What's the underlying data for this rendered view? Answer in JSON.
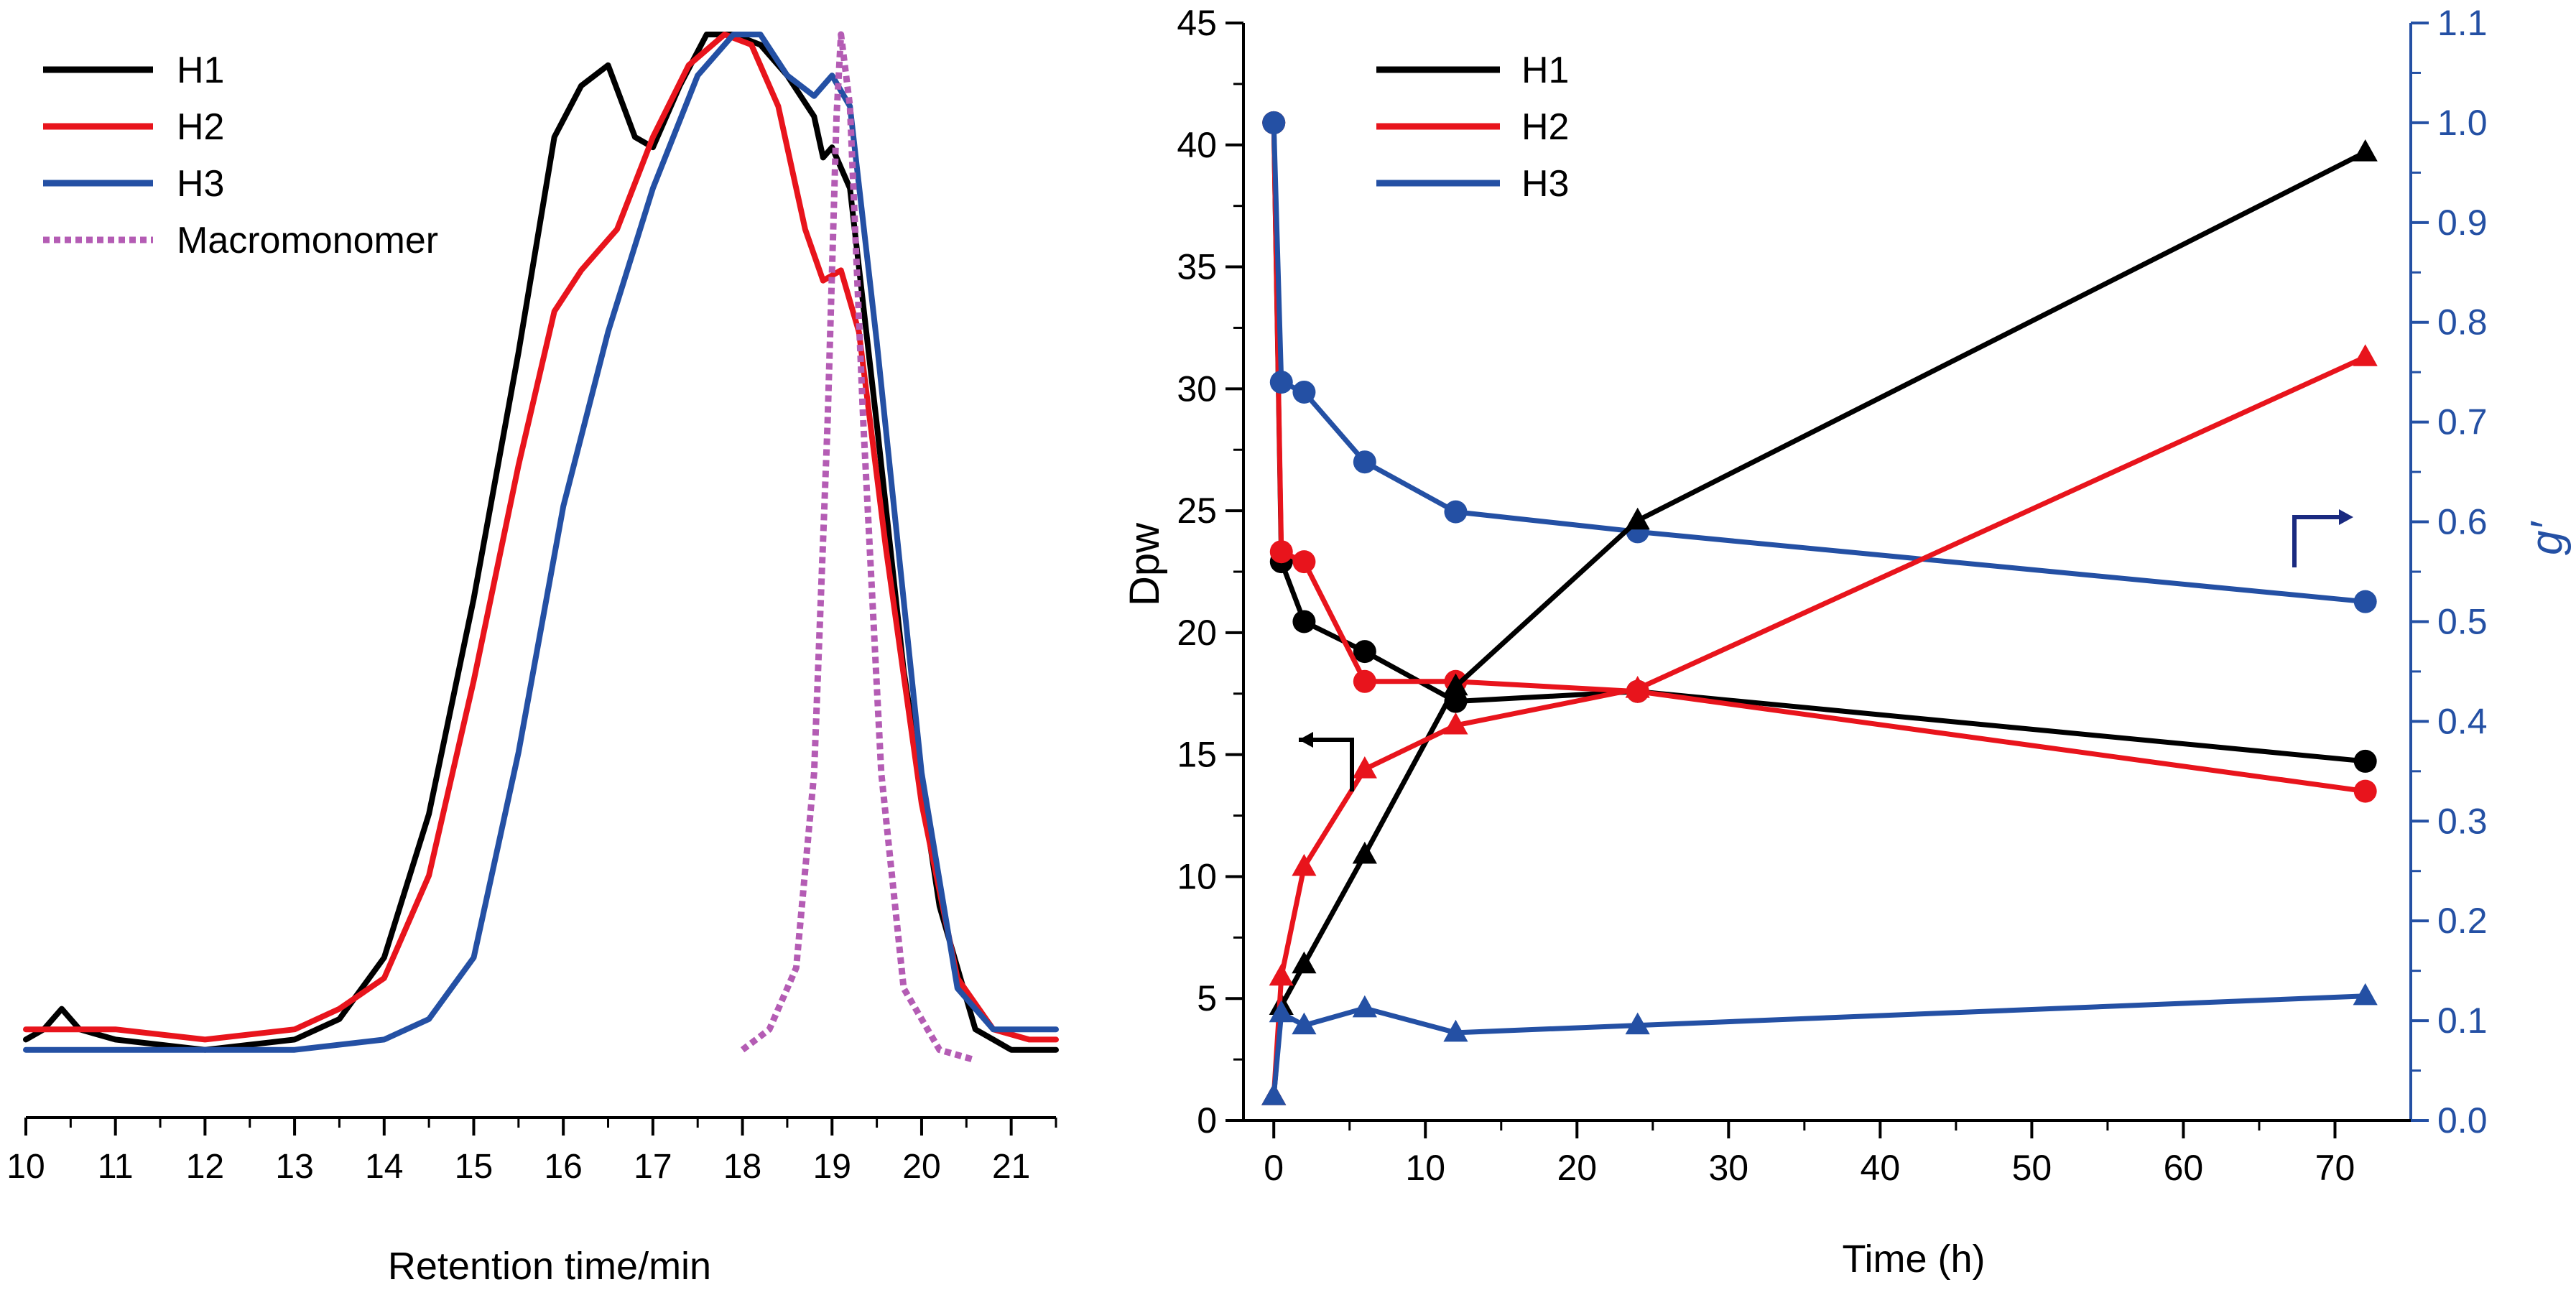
{
  "colors": {
    "H1": "#000000",
    "H2": "#e8141c",
    "H3": "#2450a4",
    "Macromonomer": "#b45cb4",
    "right_axis": "#2450a4",
    "arrow_right": "#1a2a80"
  },
  "chart_data": [
    {
      "type": "line",
      "xlabel": "Retention time/min",
      "ylabel": "",
      "xlim": [
        10,
        21.5
      ],
      "x_ticks": [
        "10",
        "11",
        "12",
        "13",
        "14",
        "15",
        "16",
        "17",
        "18",
        "19",
        "20",
        "21"
      ],
      "y_scale": "normalized detector signal, no y axis printed",
      "legend_position": "top-left",
      "grid": false,
      "series": [
        {
          "name": "H1",
          "style": "solid",
          "points": [
            [
              10,
              0.02
            ],
            [
              10.2,
              0.03
            ],
            [
              10.4,
              0.05
            ],
            [
              10.6,
              0.03
            ],
            [
              11,
              0.02
            ],
            [
              12,
              0.01
            ],
            [
              13,
              0.02
            ],
            [
              13.5,
              0.04
            ],
            [
              14,
              0.1
            ],
            [
              14.5,
              0.24
            ],
            [
              15,
              0.45
            ],
            [
              15.5,
              0.69
            ],
            [
              15.9,
              0.9
            ],
            [
              16.2,
              0.95
            ],
            [
              16.5,
              0.97
            ],
            [
              16.8,
              0.9
            ],
            [
              17.0,
              0.89
            ],
            [
              17.3,
              0.95
            ],
            [
              17.6,
              1.0
            ],
            [
              17.9,
              1.0
            ],
            [
              18.2,
              0.99
            ],
            [
              18.5,
              0.96
            ],
            [
              18.8,
              0.92
            ],
            [
              18.9,
              0.88
            ],
            [
              19.0,
              0.89
            ],
            [
              19.2,
              0.85
            ],
            [
              19.5,
              0.62
            ],
            [
              19.8,
              0.38
            ],
            [
              20.2,
              0.15
            ],
            [
              20.6,
              0.03
            ],
            [
              21.0,
              0.01
            ],
            [
              21.5,
              0.01
            ]
          ]
        },
        {
          "name": "H2",
          "style": "solid",
          "points": [
            [
              10,
              0.03
            ],
            [
              10.4,
              0.03
            ],
            [
              11,
              0.03
            ],
            [
              12,
              0.02
            ],
            [
              13,
              0.03
            ],
            [
              13.5,
              0.05
            ],
            [
              14,
              0.08
            ],
            [
              14.5,
              0.18
            ],
            [
              15,
              0.37
            ],
            [
              15.5,
              0.58
            ],
            [
              15.9,
              0.73
            ],
            [
              16.2,
              0.77
            ],
            [
              16.6,
              0.81
            ],
            [
              17,
              0.9
            ],
            [
              17.4,
              0.97
            ],
            [
              17.8,
              1.0
            ],
            [
              18.1,
              0.99
            ],
            [
              18.4,
              0.93
            ],
            [
              18.7,
              0.81
            ],
            [
              18.9,
              0.76
            ],
            [
              19.1,
              0.77
            ],
            [
              19.3,
              0.71
            ],
            [
              19.6,
              0.5
            ],
            [
              20,
              0.25
            ],
            [
              20.4,
              0.08
            ],
            [
              20.8,
              0.03
            ],
            [
              21.2,
              0.02
            ],
            [
              21.5,
              0.02
            ]
          ]
        },
        {
          "name": "H3",
          "style": "solid",
          "points": [
            [
              10,
              0.01
            ],
            [
              10.5,
              0.01
            ],
            [
              11,
              0.01
            ],
            [
              12,
              0.01
            ],
            [
              13,
              0.01
            ],
            [
              14,
              0.02
            ],
            [
              14.5,
              0.04
            ],
            [
              15,
              0.1
            ],
            [
              15.5,
              0.3
            ],
            [
              16,
              0.54
            ],
            [
              16.5,
              0.71
            ],
            [
              17,
              0.85
            ],
            [
              17.5,
              0.96
            ],
            [
              17.9,
              1.0
            ],
            [
              18.2,
              1.0
            ],
            [
              18.5,
              0.96
            ],
            [
              18.8,
              0.94
            ],
            [
              19.0,
              0.96
            ],
            [
              19.2,
              0.93
            ],
            [
              19.5,
              0.7
            ],
            [
              20,
              0.28
            ],
            [
              20.4,
              0.07
            ],
            [
              20.8,
              0.03
            ],
            [
              21.1,
              0.03
            ],
            [
              21.5,
              0.03
            ]
          ]
        },
        {
          "name": "Macromonomer",
          "style": "dotted",
          "points": [
            [
              18.0,
              0.01
            ],
            [
              18.3,
              0.03
            ],
            [
              18.6,
              0.09
            ],
            [
              18.8,
              0.28
            ],
            [
              18.95,
              0.62
            ],
            [
              19.05,
              0.92
            ],
            [
              19.1,
              1.0
            ],
            [
              19.2,
              0.93
            ],
            [
              19.35,
              0.62
            ],
            [
              19.55,
              0.28
            ],
            [
              19.8,
              0.07
            ],
            [
              20.2,
              0.01
            ],
            [
              20.6,
              0.0
            ]
          ]
        }
      ]
    },
    {
      "type": "line",
      "xlabel": "Time (h)",
      "ylabel": "Dpw",
      "y2label": "g′",
      "xlim": [
        -2,
        75
      ],
      "ylim": [
        0,
        45
      ],
      "y2lim": [
        0.0,
        1.1
      ],
      "x_ticks": [
        "0",
        "10",
        "20",
        "30",
        "40",
        "50",
        "60",
        "70"
      ],
      "y_ticks": [
        "0",
        "5",
        "10",
        "15",
        "20",
        "25",
        "30",
        "35",
        "40",
        "45"
      ],
      "y2_ticks": [
        "0.0",
        "0.1",
        "0.2",
        "0.3",
        "0.4",
        "0.5",
        "0.6",
        "0.7",
        "0.8",
        "0.9",
        "1.0",
        "1.1"
      ],
      "legend_position": "top-left",
      "grid": false,
      "x": [
        0,
        0.5,
        2,
        6,
        12,
        24,
        72
      ],
      "series": [
        {
          "name": "H1",
          "axis": "y2",
          "marker": "circle",
          "values": [
            1.0,
            0.56,
            0.5,
            0.47,
            0.42,
            0.43,
            0.36
          ]
        },
        {
          "name": "H2",
          "axis": "y2",
          "marker": "circle",
          "values": [
            1.0,
            0.57,
            0.56,
            0.44,
            0.44,
            0.43,
            0.33
          ]
        },
        {
          "name": "H3",
          "axis": "y2",
          "marker": "circle",
          "values": [
            1.0,
            0.74,
            0.73,
            0.66,
            0.61,
            0.59,
            0.52
          ]
        },
        {
          "name": "H1",
          "axis": "y",
          "marker": "triangle",
          "values": [
            1.0,
            4.7,
            6.4,
            10.9,
            17.8,
            24.6,
            39.7
          ]
        },
        {
          "name": "H2",
          "axis": "y",
          "marker": "triangle",
          "values": [
            1.0,
            5.9,
            10.4,
            14.4,
            16.2,
            17.7,
            31.3
          ]
        },
        {
          "name": "H3",
          "axis": "y",
          "marker": "triangle",
          "values": [
            1.0,
            4.4,
            3.9,
            4.6,
            3.6,
            3.9,
            5.1
          ]
        }
      ]
    }
  ]
}
